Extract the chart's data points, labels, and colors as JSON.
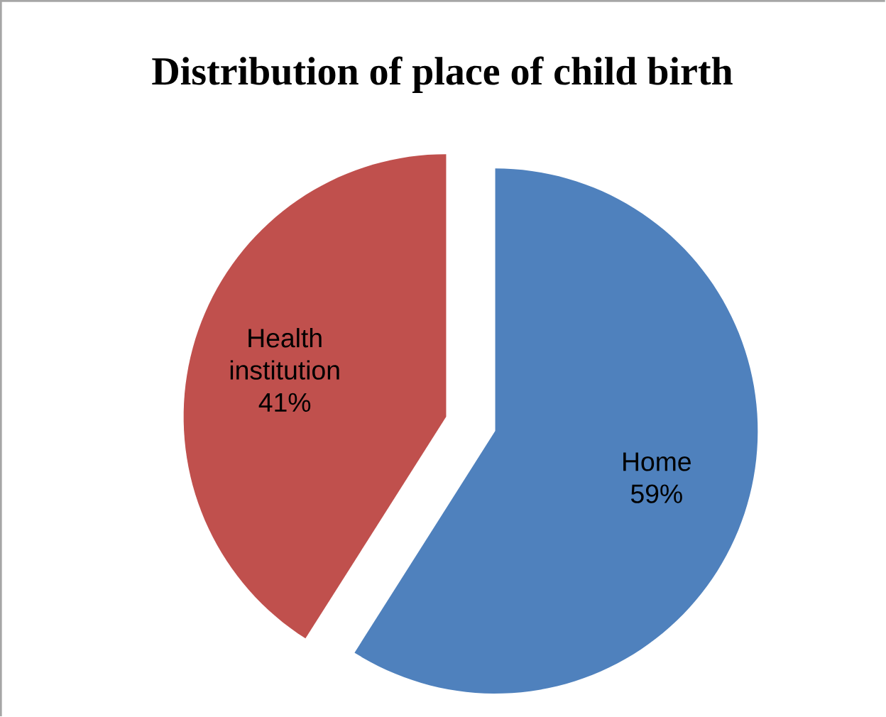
{
  "chart_data": {
    "type": "pie",
    "title": "Distribution of place of child birth",
    "categories": [
      "Home",
      "Health institution"
    ],
    "values": [
      59,
      41
    ],
    "value_labels": [
      "59%",
      "41%"
    ],
    "colors": [
      "#4f81bd",
      "#c0504d"
    ]
  }
}
